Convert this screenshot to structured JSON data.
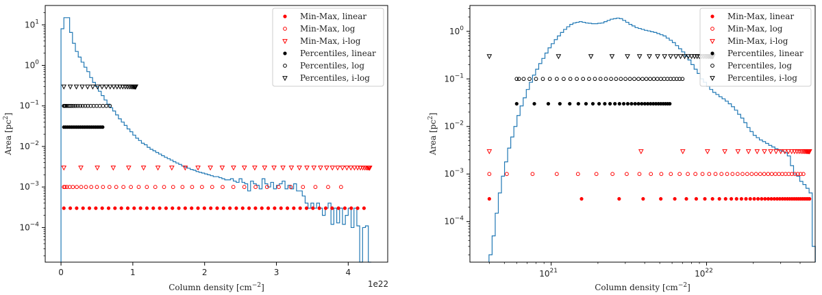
{
  "chart_data": [
    {
      "type": "histogram+scatter",
      "xscale": "linear",
      "yscale": "log",
      "xlabel": "Column density [cm",
      "xlabel_sup": "−2",
      "xlabel_end": "]",
      "ylabel": "Area [pc",
      "ylabel_sup": "2",
      "ylabel_end": "]",
      "x_offset_text": "1e22",
      "xlim": [
        -0.22,
        4.55
      ],
      "ylim": [
        1.4e-05,
        30
      ],
      "x_ticks": [
        0,
        1,
        2,
        3,
        4
      ],
      "x_tick_labels": [
        "0",
        "1",
        "2",
        "3",
        "4"
      ],
      "y_ticks": [
        0.0001,
        0.001,
        0.01,
        0.1,
        1,
        10
      ],
      "y_tick_labels": [
        {
          "base": "10",
          "exp": "−4"
        },
        {
          "base": "10",
          "exp": "−3"
        },
        {
          "base": "10",
          "exp": "−2"
        },
        {
          "base": "10",
          "exp": "−1"
        },
        {
          "base": "10",
          "exp": "0"
        },
        {
          "base": "10",
          "exp": "1"
        }
      ],
      "histogram": {
        "color": "#1f77b4",
        "bin_edges_start": 0.0,
        "bin_width": 0.04,
        "values": [
          8,
          15,
          15,
          6.5,
          3.5,
          2.2,
          1.6,
          1.2,
          0.9,
          0.7,
          0.5,
          0.38,
          0.3,
          0.23,
          0.18,
          0.14,
          0.11,
          0.09,
          0.075,
          0.06,
          0.048,
          0.04,
          0.033,
          0.027,
          0.023,
          0.019,
          0.016,
          0.014,
          0.012,
          0.011,
          0.0095,
          0.0085,
          0.0078,
          0.0071,
          0.0065,
          0.0059,
          0.0054,
          0.005,
          0.0046,
          0.0042,
          0.0039,
          0.0036,
          0.0033,
          0.0031,
          0.0029,
          0.0027,
          0.0026,
          0.0024,
          0.0023,
          0.0022,
          0.0021,
          0.002,
          0.0019,
          0.0018,
          0.0018,
          0.0017,
          0.0016,
          0.0015,
          0.0015,
          0.0016,
          0.0014,
          0.0013,
          0.0016,
          0.0013,
          0.0012,
          0.0008,
          0.0014,
          0.0012,
          0.0011,
          0.0009,
          0.0016,
          0.0012,
          0.001,
          0.0013,
          0.0009,
          0.0011,
          0.0012,
          0.0014,
          0.0009,
          0.0011,
          0.0009,
          0.0012,
          0.0008,
          0.0008,
          0.0006,
          0.0004,
          0.0003,
          0.0004,
          0.0003,
          0.0004,
          0.0003,
          0.0002,
          0.0003,
          0.0004,
          0.00012,
          0.0003,
          0.00013,
          0.0003,
          0.00012,
          0.0002,
          0.0003,
          0.0001,
          0.0003,
          0.00011,
          1e-05,
          0.0001,
          0.00011,
          1e-05
        ]
      },
      "scatter_rows": [
        {
          "y": 0.0003,
          "x_start": 0.04,
          "x_end": 4.22,
          "count": 48,
          "spacing": "linear"
        },
        {
          "y": 0.001,
          "x_start": 0.04,
          "x_end": 3.9,
          "count": 35,
          "spacing": "log"
        },
        {
          "y": 0.003,
          "x_start": 0.04,
          "x_end": 4.3,
          "count": 40,
          "spacing": "ilog"
        },
        {
          "y": 0.03,
          "x_start": 0.04,
          "x_end": 0.58,
          "count": 22,
          "spacing": "linear"
        },
        {
          "y": 0.1,
          "x_start": 0.04,
          "x_end": 0.68,
          "count": 22,
          "spacing": "log"
        },
        {
          "y": 0.3,
          "x_start": 0.04,
          "x_end": 1.04,
          "count": 25,
          "spacing": "ilog"
        }
      ]
    },
    {
      "type": "histogram+scatter",
      "xscale": "log",
      "yscale": "log",
      "xlabel": "Column density [cm",
      "xlabel_sup": "−2",
      "xlabel_end": "]",
      "ylabel": "Area [pc",
      "ylabel_sup": "2",
      "ylabel_end": "]",
      "xlim": [
        3e+20,
        5e+22
      ],
      "ylim": [
        1.4e-05,
        3.5
      ],
      "x_major_ticks": [
        1e+21,
        1e+22
      ],
      "x_tick_labels": [
        {
          "base": "10",
          "exp": "21"
        },
        {
          "base": "10",
          "exp": "22"
        }
      ],
      "y_ticks": [
        0.0001,
        0.001,
        0.01,
        0.1,
        1
      ],
      "y_tick_labels": [
        {
          "base": "10",
          "exp": "−4"
        },
        {
          "base": "10",
          "exp": "−3"
        },
        {
          "base": "10",
          "exp": "−2"
        },
        {
          "base": "10",
          "exp": "−1"
        },
        {
          "base": "10",
          "exp": "0"
        }
      ],
      "histogram": {
        "color": "#1f77b4",
        "log_x_start": 20.6,
        "log_bin_width": 0.02,
        "values": [
          2e-05,
          5e-05,
          0.00015,
          0.0004,
          0.0009,
          0.0018,
          0.0035,
          0.006,
          0.01,
          0.017,
          0.027,
          0.04,
          0.06,
          0.085,
          0.12,
          0.16,
          0.21,
          0.27,
          0.35,
          0.45,
          0.55,
          0.67,
          0.8,
          0.95,
          1.1,
          1.25,
          1.4,
          1.5,
          1.55,
          1.6,
          1.55,
          1.5,
          1.48,
          1.45,
          1.45,
          1.48,
          1.5,
          1.6,
          1.7,
          1.8,
          1.85,
          1.9,
          1.85,
          1.7,
          1.55,
          1.4,
          1.3,
          1.2,
          1.15,
          1.1,
          1.05,
          1.02,
          0.98,
          0.95,
          0.9,
          0.85,
          0.8,
          0.72,
          0.65,
          0.58,
          0.5,
          0.43,
          0.37,
          0.3,
          0.25,
          0.2,
          0.16,
          0.13,
          0.1,
          0.085,
          0.07,
          0.06,
          0.052,
          0.047,
          0.042,
          0.038,
          0.034,
          0.03,
          0.026,
          0.022,
          0.018,
          0.015,
          0.012,
          0.0095,
          0.0078,
          0.0065,
          0.0058,
          0.0052,
          0.0048,
          0.0044,
          0.004,
          0.0037,
          0.0034,
          0.0032,
          0.003,
          0.0028,
          0.0024,
          0.0015,
          0.001,
          0.0009,
          0.0007,
          0.0006,
          0.0005,
          0.0004,
          3e-05
        ]
      },
      "scatter_rows": [
        {
          "y": 0.0003,
          "x_start": 4e+20,
          "x_end": 4.6e+22,
          "count": 40,
          "spacing": "linear"
        },
        {
          "y": 0.001,
          "x_start": 4e+20,
          "x_end": 4.2e+22,
          "count": 40,
          "spacing": "log"
        },
        {
          "y": 0.003,
          "x_start": 4e+20,
          "x_end": 4.6e+22,
          "count": 30,
          "spacing": "ilog"
        },
        {
          "y": 0.03,
          "x_start": 6e+20,
          "x_end": 5.8e+21,
          "count": 30,
          "spacing": "linear"
        },
        {
          "y": 0.1,
          "x_start": 6e+20,
          "x_end": 7e+21,
          "count": 36,
          "spacing": "log"
        },
        {
          "y": 0.3,
          "x_start": 4e+20,
          "x_end": 1.1e+22,
          "count": 33,
          "spacing": "ilog"
        }
      ]
    }
  ],
  "legend": {
    "entries": [
      {
        "label": "Min-Max, linear",
        "color": "#ff0000",
        "marker": "filled-circle"
      },
      {
        "label": "Min-Max, log",
        "color": "#ff0000",
        "marker": "open-circle"
      },
      {
        "label": "Min-Max, i-log",
        "color": "#ff0000",
        "marker": "open-triangle-down"
      },
      {
        "label": "Percentiles, linear",
        "color": "#000000",
        "marker": "filled-circle"
      },
      {
        "label": "Percentiles, log",
        "color": "#000000",
        "marker": "open-circle"
      },
      {
        "label": "Percentiles, i-log",
        "color": "#000000",
        "marker": "open-triangle-down"
      }
    ],
    "placement": "top-right"
  }
}
